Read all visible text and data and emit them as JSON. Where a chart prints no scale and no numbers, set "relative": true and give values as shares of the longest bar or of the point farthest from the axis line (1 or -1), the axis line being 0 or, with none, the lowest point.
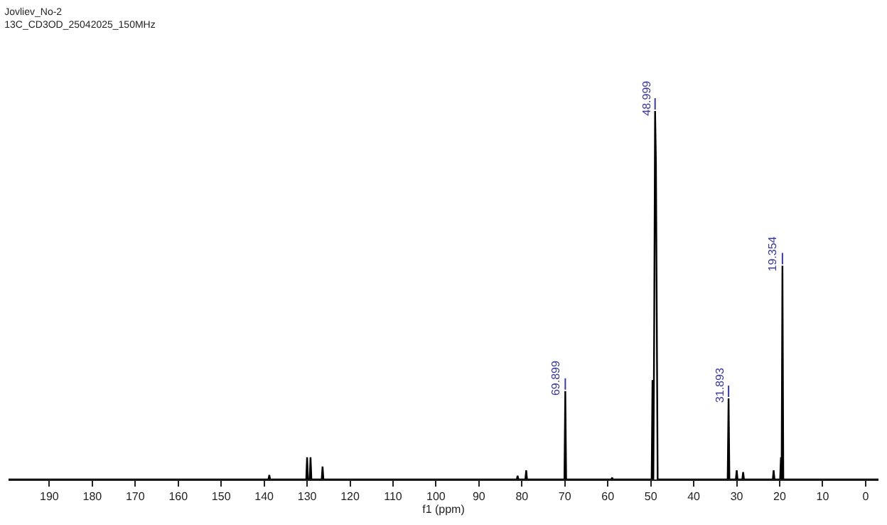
{
  "chart_data": {
    "type": "line",
    "title": "Jovliev_No-2",
    "subtitle": "13C_CD3OD_25042025_150MHz",
    "xlabel": "f1 (ppm)",
    "relative": true,
    "grid": false,
    "marker": "none",
    "line_style": "solid",
    "xlim": [
      199.5,
      -3
    ],
    "xticks": [
      190,
      180,
      170,
      160,
      150,
      140,
      130,
      120,
      110,
      100,
      90,
      80,
      70,
      60,
      50,
      40,
      30,
      20,
      10,
      0
    ],
    "series": [
      {
        "color": "#000000",
        "x": [
          199.5,
          139.0,
          138.8,
          138.6,
          130.2,
          130.0,
          129.8,
          129.4,
          129.2,
          129.0,
          126.6,
          126.4,
          126.2,
          81.2,
          81.0,
          80.8,
          79.2,
          79.0,
          78.8,
          70.1,
          69.899,
          69.7,
          59.2,
          59.0,
          58.8,
          49.8,
          49.6,
          49.4,
          49.2,
          48.999,
          48.8,
          48.6,
          48.4,
          32.1,
          31.893,
          31.7,
          30.2,
          30.0,
          29.8,
          28.7,
          28.5,
          28.3,
          21.6,
          21.4,
          21.2,
          19.9,
          19.7,
          19.55,
          19.354,
          19.15,
          -3
        ],
        "values": [
          0,
          0,
          0.012,
          0,
          0,
          0.06,
          0,
          0,
          0.06,
          0,
          0,
          0.035,
          0,
          0,
          0.01,
          0,
          0,
          0.025,
          0,
          0,
          0.24,
          0,
          0,
          0.005,
          0,
          0,
          0.27,
          0,
          0.43,
          1,
          0.86,
          0.43,
          0,
          0,
          0.22,
          0,
          0,
          0.025,
          0,
          0,
          0.02,
          0,
          0,
          0.025,
          0,
          0,
          0.06,
          0,
          0.58,
          0,
          0
        ]
      }
    ],
    "annotations": [
      {
        "text": "69.899",
        "x": 69.899,
        "y": 0.24
      },
      {
        "text": "48.999",
        "x": 48.999,
        "y": 1
      },
      {
        "text": "31.893",
        "x": 31.893,
        "y": 0.22
      },
      {
        "text": "19.354",
        "x": 19.354,
        "y": 0.58
      }
    ]
  }
}
